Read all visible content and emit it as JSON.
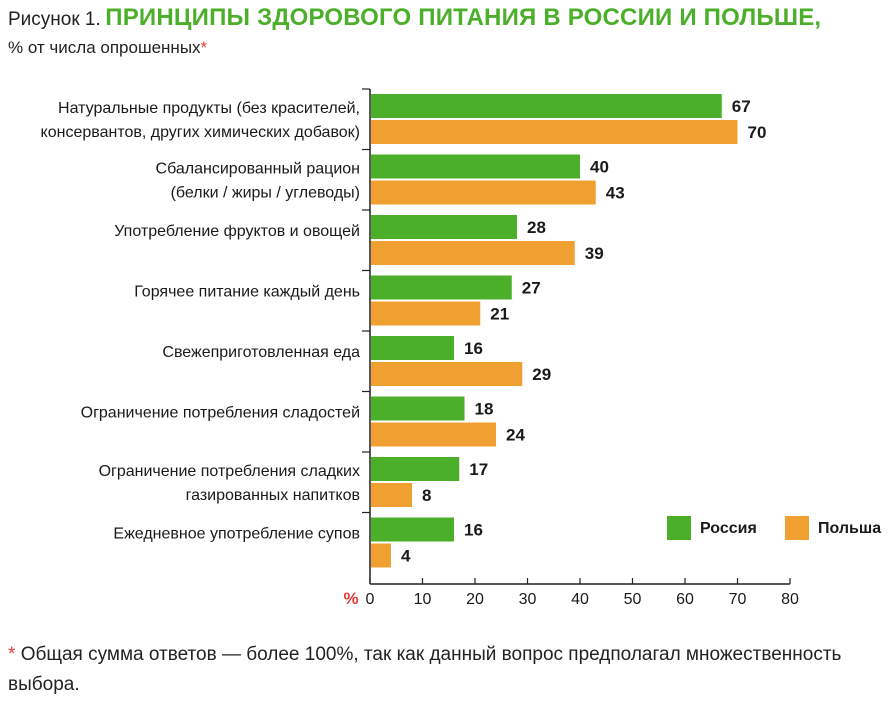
{
  "title": {
    "figure_label": "Рисунок 1.",
    "main": "ПРИНЦИПЫ ЗДОРОВОГО ПИТАНИЯ В РОССИИ И ПОЛЬШЕ,",
    "subtitle": "% от числа опрошенных",
    "asterisk": "*"
  },
  "footnote": {
    "asterisk": "*",
    "text": "Общая сумма ответов — более 100%, так как данный вопрос предполагал множественность выбора."
  },
  "colors": {
    "russia": "#4caf2a",
    "poland": "#f0a030",
    "asterisk": "#e53935"
  },
  "chart_data": {
    "type": "bar",
    "orientation": "horizontal",
    "categories": [
      [
        "Натуральные продукты (без красителей,",
        "консервантов, других химических добавок)"
      ],
      [
        "Сбалансированный рацион",
        "(белки / жиры / углеводы)"
      ],
      [
        "Употребление фруктов и овощей"
      ],
      [
        "Горячее питание каждый день"
      ],
      [
        "Свежеприготовленная еда"
      ],
      [
        "Ограничение потребления сладостей"
      ],
      [
        "Ограничение потребления сладких",
        "газированных напитков"
      ],
      [
        "Ежедневное употребление супов"
      ]
    ],
    "series": [
      {
        "name": "Россия",
        "values": [
          67,
          40,
          28,
          27,
          16,
          18,
          17,
          16
        ]
      },
      {
        "name": "Польша",
        "values": [
          70,
          43,
          39,
          21,
          29,
          24,
          8,
          4
        ]
      }
    ],
    "xlabel": "%",
    "xlim": [
      0,
      80
    ],
    "xticks": [
      0,
      10,
      20,
      30,
      40,
      50,
      60,
      70,
      80
    ],
    "legend_position": "bottom-right",
    "grid": false
  }
}
